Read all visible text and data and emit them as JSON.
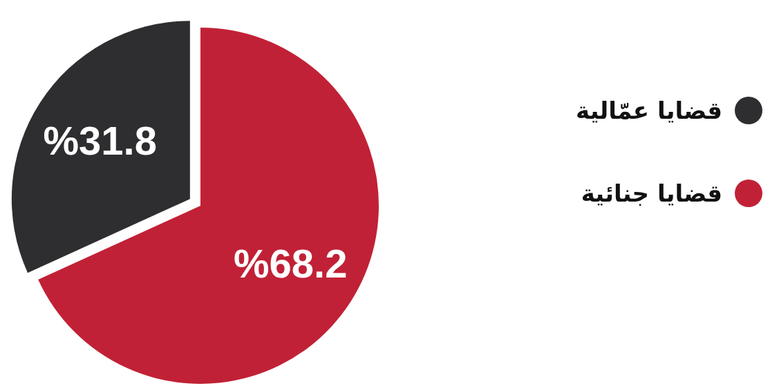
{
  "chart_data": {
    "type": "pie",
    "categories": [
      "قضايا عمّالية",
      "قضايا جنائية"
    ],
    "values": [
      31.8,
      68.2
    ],
    "colors": [
      "#2e2e30",
      "#c12136"
    ],
    "value_labels": [
      "%31.8",
      "%68.2"
    ],
    "legend": "right"
  }
}
